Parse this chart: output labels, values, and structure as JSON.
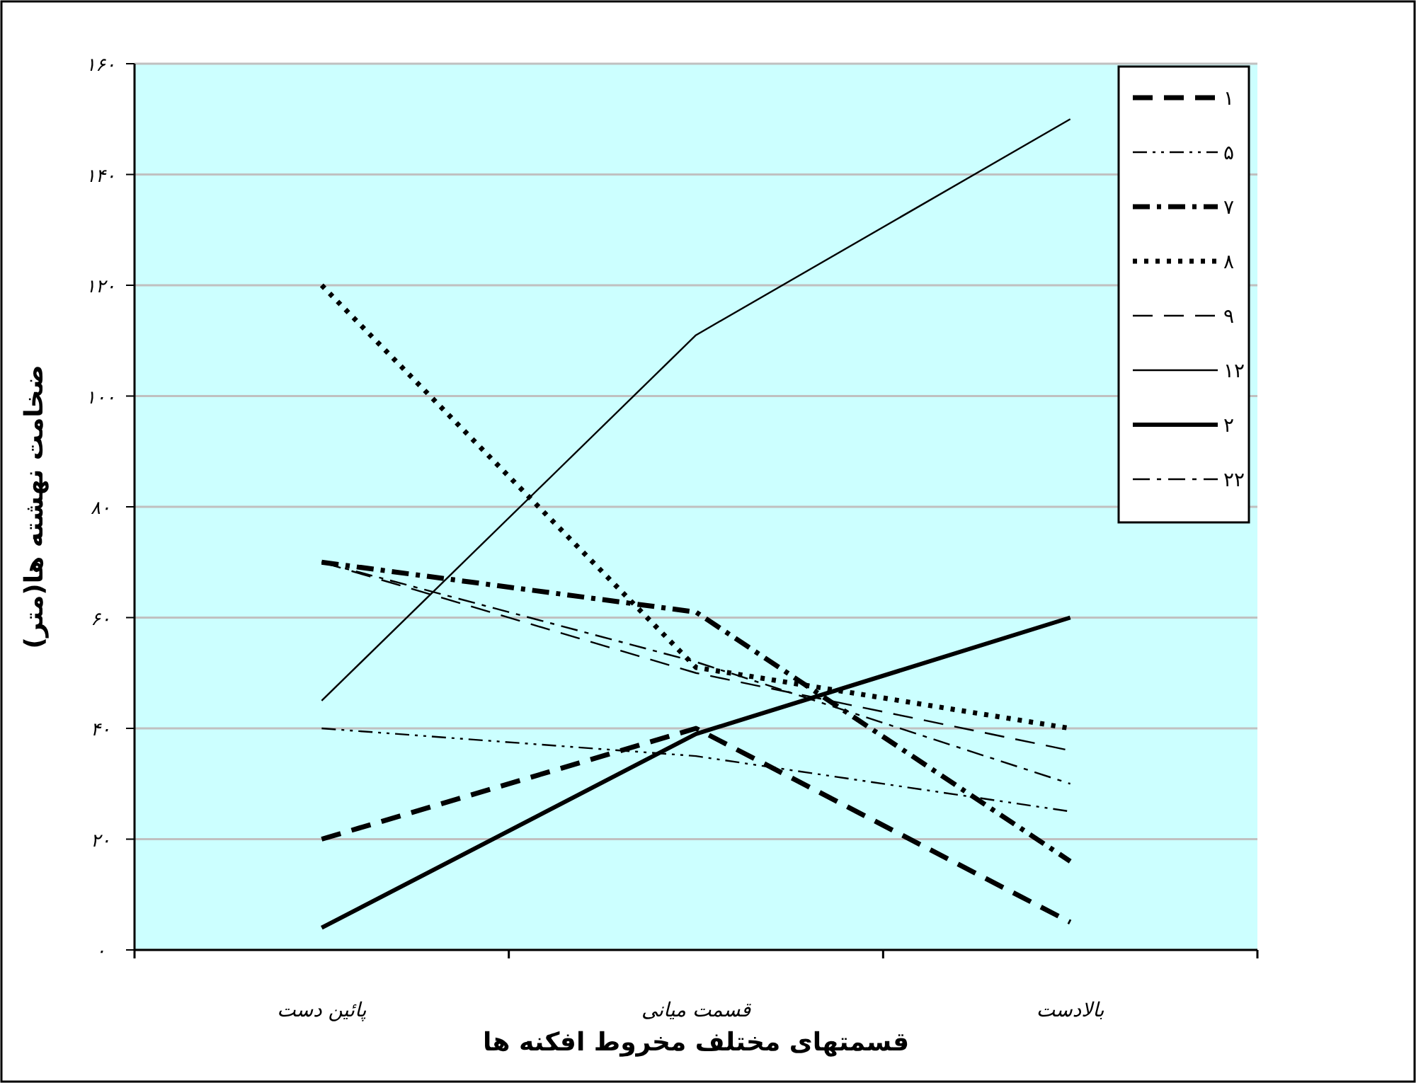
{
  "chart_data": {
    "type": "line",
    "xlabel": "قسمتهای مختلف مخروط افکنه ها",
    "ylabel": "ضخامت نهشته ها(متر)",
    "categories": [
      "پائین دست",
      "قسمت میانی",
      "بالادست"
    ],
    "ylim": [
      0,
      160
    ],
    "yticks": [
      {
        "value": 0,
        "label": "۰"
      },
      {
        "value": 20,
        "label": "۲۰"
      },
      {
        "value": 40,
        "label": "۴۰"
      },
      {
        "value": 60,
        "label": "۶۰"
      },
      {
        "value": 80,
        "label": "۸۰"
      },
      {
        "value": 100,
        "label": "۱۰۰"
      },
      {
        "value": 120,
        "label": "۱۲۰"
      },
      {
        "value": 140,
        "label": "۱۴۰"
      },
      {
        "value": 160,
        "label": "۱۶۰"
      }
    ],
    "grid": "y",
    "legend": "top right",
    "marker": "none",
    "series": [
      {
        "name": "۱",
        "color": "#000000",
        "line_style": "dashed",
        "values": [
          20,
          40,
          5
        ]
      },
      {
        "name": "۵",
        "color": "#000000",
        "line_style": "dashdotdot",
        "values": [
          40,
          35,
          25
        ]
      },
      {
        "name": "۷",
        "color": "#000000",
        "line_style": "dashdot",
        "values": [
          70,
          61,
          16
        ]
      },
      {
        "name": "۸",
        "color": "#000000",
        "line_style": "dotted",
        "values": [
          120,
          51,
          40
        ]
      },
      {
        "name": "۹",
        "color": "#000000",
        "line_style": "dashed",
        "values": [
          70,
          50,
          36
        ]
      },
      {
        "name": "۱۲",
        "color": "#000000",
        "line_style": "solid",
        "values": [
          45,
          111,
          150
        ]
      },
      {
        "name": "۲",
        "color": "#000000",
        "line_style": "solid",
        "values": [
          4,
          39,
          60
        ]
      },
      {
        "name": "۲۲",
        "color": "#000000",
        "line_style": "dashdot",
        "values": [
          70,
          52,
          30
        ]
      }
    ]
  }
}
